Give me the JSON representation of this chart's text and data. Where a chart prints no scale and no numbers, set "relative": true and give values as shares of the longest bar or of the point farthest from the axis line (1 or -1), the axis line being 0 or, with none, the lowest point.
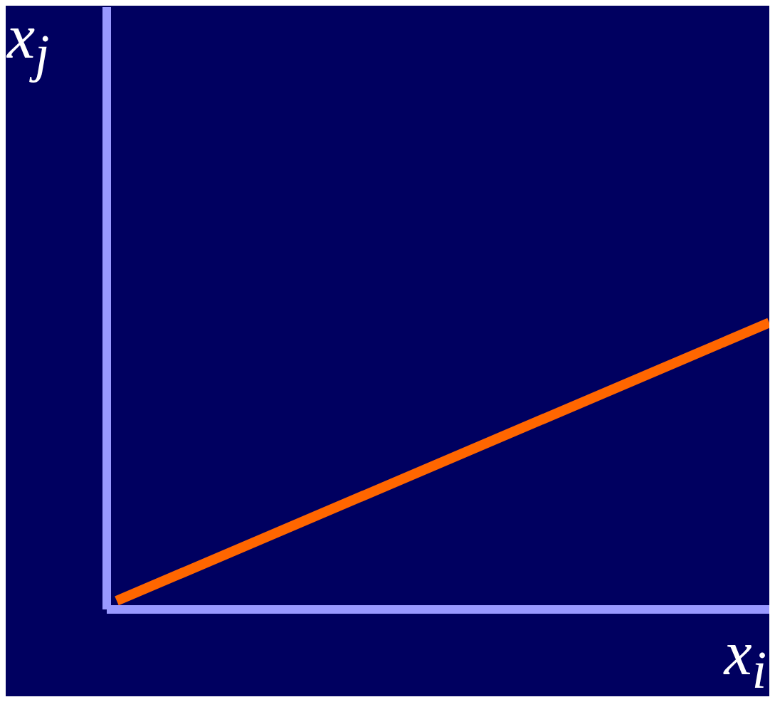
{
  "chart_data": {
    "type": "line",
    "relative": true,
    "xlabel": "x$_{i}$",
    "ylabel": "x$_{j}$",
    "categories": [
      null,
      null
    ],
    "series": [
      {
        "color": "#ff6600",
        "values": [
          0.03,
          1
        ]
      }
    ],
    "marker": "none",
    "line_style": "solid"
  }
}
